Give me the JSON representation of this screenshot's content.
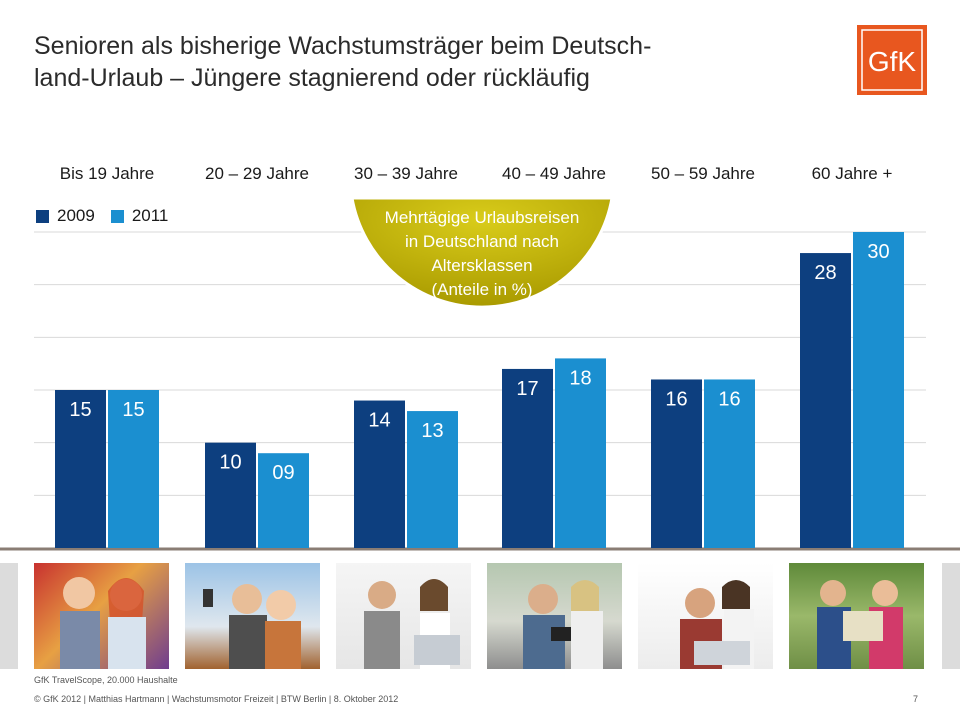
{
  "title": "Senioren als bisherige Wachstumsträger beim Deutsch-land-Urlaub – Jüngere stagnierend oder rückläufig",
  "title_line1": "Senioren als bisherige Wachstumsträger beim Deutsch-",
  "title_line2": "land-Urlaub – Jüngere stagnierend oder rückläufig",
  "logo_text": "GfK",
  "colors": {
    "accent": "#e8571f",
    "series_2009": "#0d3f7f",
    "series_2011": "#1b8fd0",
    "badge": "#b6a800"
  },
  "badge": {
    "line1": "Mehrtägige Urlaubsreisen",
    "line2": "in Deutschland nach",
    "line3": "Altersklassen",
    "line4": "(Anteile in %)"
  },
  "chart_data": {
    "type": "bar",
    "categories": [
      "Bis 19 Jahre",
      "20 – 29 Jahre",
      "30 – 39 Jahre",
      "40 – 49 Jahre",
      "50 – 59 Jahre",
      "60 Jahre +"
    ],
    "series": [
      {
        "name": "2009",
        "values": [
          15,
          10,
          14,
          17,
          16,
          28
        ],
        "labels": [
          "15",
          "10",
          "14",
          "17",
          "16",
          "28"
        ]
      },
      {
        "name": "2011",
        "values": [
          15,
          9,
          13,
          18,
          16,
          30
        ],
        "labels": [
          "15",
          "09",
          "13",
          "18",
          "16",
          "30"
        ]
      }
    ],
    "ylim": [
      0,
      30
    ],
    "grid": true,
    "legend": "top-left"
  },
  "photos": [
    {
      "icon": "teen-couple-photo"
    },
    {
      "icon": "young-couple-selfie-photo"
    },
    {
      "icon": "couple-laptop-photo"
    },
    {
      "icon": "couple-camera-photo"
    },
    {
      "icon": "senior-couple-laptop-photo"
    },
    {
      "icon": "senior-hikers-photo"
    }
  ],
  "source": "GfK TravelScope, 20.000 Haushalte",
  "footer": "© GfK 2012 | Matthias Hartmann | Wachstumsmotor Freizeit | BTW Berlin | 8. Oktober 2012",
  "page_number": "7"
}
